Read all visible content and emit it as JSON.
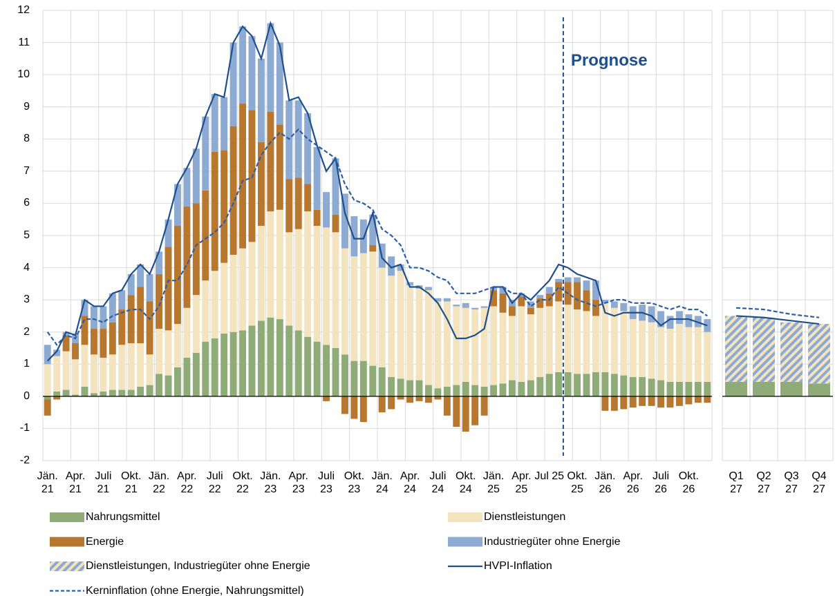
{
  "chart_data": [
    {
      "type": "bar",
      "categories": [
        "Jän. 21",
        null,
        null,
        "Apr. 21",
        null,
        null,
        "Juli 21",
        null,
        null,
        "Okt. 21",
        null,
        null,
        "Jän. 22",
        null,
        null,
        "Apr. 22",
        null,
        null,
        "Juli 22",
        null,
        null,
        "Okt. 22",
        null,
        null,
        "Jän. 23",
        null,
        null,
        "Apr. 23",
        null,
        null,
        "Juli 23",
        null,
        null,
        "Okt. 23",
        null,
        null,
        "Jän. 24",
        null,
        null,
        "Apr. 24",
        null,
        null,
        "Juli 24",
        null,
        null,
        "Okt. 24",
        null,
        null,
        "Jän. 25",
        null,
        null,
        "Apr. 25",
        null,
        null,
        "Jul 25",
        null,
        null,
        "Okt. 25",
        null,
        null,
        "Jän. 26",
        null,
        null,
        "Apr. 26",
        null,
        null,
        "Juli 26",
        null,
        null,
        "Okt. 26",
        null,
        null
      ],
      "ylim": [
        -2,
        12
      ],
      "yticks": [
        -2,
        -1,
        0,
        1,
        2,
        3,
        4,
        5,
        6,
        7,
        8,
        9,
        10,
        11,
        12
      ],
      "grid": true,
      "annotations": [
        {
          "text": "Prognose"
        }
      ],
      "series": [
        {
          "name": "Nahrungsmittel",
          "type": "bar",
          "color": "#8fac78",
          "values": [
            -0.1,
            0.15,
            0.2,
            0.05,
            0.3,
            0.1,
            0.15,
            0.2,
            0.2,
            0.2,
            0.3,
            0.35,
            0.7,
            0.65,
            0.9,
            1.2,
            1.35,
            1.7,
            1.8,
            1.95,
            2.0,
            2.05,
            2.2,
            2.35,
            2.45,
            2.4,
            2.2,
            2.05,
            1.85,
            1.7,
            1.6,
            1.5,
            1.3,
            1.1,
            1.1,
            0.95,
            0.9,
            0.6,
            0.55,
            0.5,
            0.5,
            0.35,
            0.25,
            0.3,
            0.35,
            0.45,
            0.35,
            0.3,
            0.35,
            0.4,
            0.5,
            0.45,
            0.5,
            0.6,
            0.7,
            0.75,
            0.75,
            0.7,
            0.7,
            0.75,
            0.75,
            0.7,
            0.65,
            0.6,
            0.6,
            0.55,
            0.5,
            0.45,
            0.45,
            0.45,
            0.45,
            0.45
          ]
        },
        {
          "name": "Dienstleistungen",
          "type": "bar",
          "color": "#f3e4bf",
          "values": [
            1.0,
            1.1,
            1.2,
            1.1,
            1.3,
            1.2,
            1.05,
            1.1,
            1.4,
            1.45,
            1.35,
            0.95,
            1.4,
            1.4,
            1.35,
            1.55,
            1.8,
            1.9,
            2.1,
            2.2,
            2.4,
            2.55,
            2.6,
            2.95,
            3.3,
            3.4,
            2.9,
            3.15,
            3.9,
            3.6,
            3.65,
            3.6,
            3.3,
            3.25,
            3.35,
            3.55,
            3.1,
            3.15,
            3.35,
            2.95,
            2.85,
            2.95,
            2.7,
            2.65,
            2.45,
            2.3,
            2.35,
            2.45,
            2.45,
            2.2,
            2.0,
            2.35,
            2.05,
            2.15,
            2.1,
            2.2,
            2.1,
            2.0,
            1.95,
            1.75,
            2.15,
            2.05,
            2.0,
            1.8,
            1.75,
            1.75,
            1.65,
            1.65,
            1.8,
            1.7,
            1.7,
            1.55
          ]
        },
        {
          "name": "Energie",
          "type": "bar",
          "color": "#b8772e",
          "values": [
            -0.5,
            -0.1,
            0.5,
            0.5,
            0.9,
            0.8,
            0.9,
            1.0,
            1.1,
            1.5,
            1.75,
            1.65,
            1.7,
            2.6,
            3.05,
            3.15,
            2.85,
            2.8,
            3.7,
            3.5,
            4.0,
            4.5,
            4.1,
            2.6,
            3.1,
            2.65,
            1.65,
            1.6,
            0.85,
            0.5,
            -0.15,
            0.55,
            -0.55,
            -0.7,
            -0.8,
            0.2,
            -0.5,
            -0.4,
            -0.1,
            -0.2,
            -0.15,
            -0.2,
            -0.1,
            -0.6,
            -0.95,
            -1.1,
            -0.9,
            -0.6,
            0.5,
            0.6,
            0.3,
            0.3,
            0.2,
            0.3,
            0.4,
            0.6,
            0.7,
            0.85,
            0.65,
            0.5,
            -0.45,
            -0.45,
            -0.4,
            -0.35,
            -0.3,
            -0.3,
            -0.35,
            -0.35,
            -0.3,
            -0.25,
            -0.2,
            -0.2
          ]
        },
        {
          "name": "Industriegüter ohne Energie",
          "type": "bar",
          "color": "#8caad2",
          "values": [
            0.6,
            0.2,
            0.1,
            0.3,
            0.5,
            0.7,
            0.7,
            0.9,
            0.6,
            0.65,
            0.7,
            0.85,
            0.7,
            0.85,
            1.3,
            1.2,
            1.7,
            2.3,
            1.8,
            1.65,
            2.6,
            2.4,
            2.3,
            2.6,
            2.75,
            2.55,
            2.45,
            2.4,
            2.2,
            1.95,
            1.1,
            1.75,
            1.7,
            1.25,
            1.05,
            0.95,
            0.75,
            0.6,
            0.2,
            0.1,
            0.1,
            0.1,
            0.1,
            0.1,
            0.05,
            0.15,
            0.05,
            0.05,
            0.1,
            0.2,
            0.2,
            0.1,
            0.2,
            0.1,
            0.2,
            0.1,
            0.15,
            0.15,
            0.3,
            0.6,
            0.1,
            0.2,
            0.25,
            0.4,
            0.5,
            0.5,
            0.5,
            0.4,
            0.4,
            0.4,
            0.35,
            0.4
          ]
        },
        {
          "name": "HVPI-Inflation",
          "type": "line",
          "color": "#1f4e8c",
          "values": [
            1.1,
            1.4,
            2.0,
            1.9,
            3.0,
            2.8,
            2.8,
            3.2,
            3.3,
            3.8,
            4.1,
            3.8,
            4.5,
            5.5,
            6.6,
            7.1,
            7.7,
            8.7,
            9.4,
            9.3,
            11.0,
            11.5,
            11.2,
            10.5,
            11.6,
            10.9,
            9.2,
            9.3,
            8.8,
            7.8,
            7.0,
            7.4,
            5.7,
            4.9,
            4.9,
            5.7,
            4.3,
            4.0,
            4.1,
            3.4,
            3.4,
            3.2,
            2.9,
            2.4,
            1.8,
            1.8,
            1.9,
            2.1,
            3.4,
            3.4,
            2.9,
            3.2,
            3.0,
            3.3,
            3.6,
            4.1,
            4.0,
            3.8,
            3.7,
            3.6,
            2.6,
            2.5,
            2.6,
            2.6,
            2.6,
            2.5,
            2.2,
            2.4,
            2.4,
            2.4,
            2.3,
            2.2
          ]
        },
        {
          "name": "Kerninflation (ohne Energie, Nahrungsmittel)",
          "type": "line",
          "dashed": true,
          "color": "#2a5ea8",
          "values": [
            2.0,
            1.6,
            1.9,
            1.8,
            2.4,
            2.4,
            2.3,
            2.5,
            2.6,
            2.7,
            2.7,
            2.4,
            2.8,
            3.6,
            3.6,
            4.1,
            4.7,
            4.9,
            5.1,
            5.4,
            6.0,
            6.7,
            6.8,
            7.5,
            7.9,
            8.2,
            8.0,
            8.3,
            8.0,
            7.8,
            7.6,
            7.4,
            6.6,
            6.1,
            6.0,
            5.8,
            5.2,
            5.0,
            4.7,
            4.0,
            4.0,
            3.9,
            3.7,
            3.6,
            3.2,
            3.2,
            3.2,
            3.3,
            3.4,
            3.4,
            3.2,
            3.2,
            2.8,
            3.0,
            3.0,
            3.4,
            3.2,
            3.0,
            2.9,
            2.8,
            2.9,
            3.0,
            3.0,
            2.9,
            2.9,
            2.9,
            2.8,
            2.7,
            2.8,
            2.7,
            2.7,
            2.5
          ]
        }
      ]
    },
    {
      "type": "bar",
      "categories": [
        "Q1 27",
        "Q2 27",
        "Q3 27",
        "Q4 27"
      ],
      "ylim": [
        -2,
        12
      ],
      "grid": true,
      "series": [
        {
          "name": "Nahrungsmittel",
          "type": "bar",
          "color": "#8fac78",
          "values": [
            0.45,
            0.45,
            0.45,
            0.4
          ]
        },
        {
          "name": "Dienstleistungen, Industriegüter ohne Energie",
          "type": "bar",
          "color": "#8caad2",
          "hatch_color": "#f3e4bf",
          "values": [
            2.05,
            2.0,
            1.85,
            1.85
          ]
        },
        {
          "name": "HVPI-Inflation",
          "type": "line",
          "color": "#1f4e8c",
          "values": [
            2.5,
            2.45,
            2.35,
            2.25
          ]
        },
        {
          "name": "Kerninflation (ohne Energie, Nahrungsmittel)",
          "type": "line",
          "dashed": true,
          "color": "#2a5ea8",
          "values": [
            2.75,
            2.7,
            2.55,
            2.45
          ]
        }
      ]
    }
  ]
}
